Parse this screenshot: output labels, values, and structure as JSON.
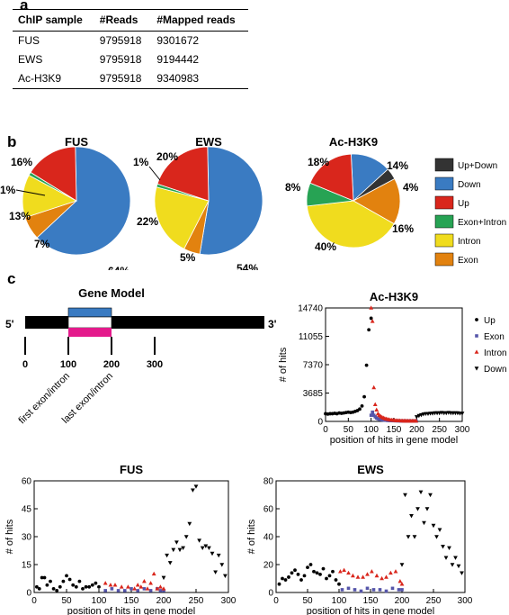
{
  "panels": {
    "a": "a",
    "b": "b",
    "c": "c"
  },
  "table": {
    "headers": [
      "ChIP sample",
      "#Reads",
      "#Mapped reads"
    ],
    "rows": [
      [
        "FUS",
        "9795918",
        "9301672"
      ],
      [
        "EWS",
        "9795918",
        "9194442"
      ],
      [
        "Ac-H3K9",
        "9795918",
        "9340983"
      ]
    ]
  },
  "pie_legend": [
    {
      "label": "Up+Down",
      "color": "#333333"
    },
    {
      "label": "Down",
      "color": "#3a7bc2"
    },
    {
      "label": "Up",
      "color": "#d9261c"
    },
    {
      "label": "Exon+Intron",
      "color": "#27a354"
    },
    {
      "label": "Intron",
      "color": "#f0dc1e"
    },
    {
      "label": "Exon",
      "color": "#e2820f"
    }
  ],
  "gene_model": {
    "title": "Gene Model",
    "five_prime": "5'",
    "three_prime": "3'",
    "ticks": [
      "0",
      "100",
      "200",
      "300"
    ],
    "first_label": "first exon/intron",
    "last_label": "last exon/intron"
  },
  "scatter_legend": [
    {
      "label": "Up",
      "marker": "circle",
      "color": "#000000"
    },
    {
      "label": "Exon",
      "marker": "square",
      "color": "#5555aa"
    },
    {
      "label": "Intron",
      "marker": "triangle-up",
      "color": "#d9261c"
    },
    {
      "label": "Down",
      "marker": "triangle-down",
      "color": "#000000"
    }
  ],
  "chart_data": [
    {
      "type": "pie",
      "title": "FUS",
      "slices": [
        {
          "category": "Down",
          "value": 64,
          "label": "64%"
        },
        {
          "category": "Exon",
          "value": 7,
          "label": "7%"
        },
        {
          "category": "Intron",
          "value": 13,
          "label": "13%"
        },
        {
          "category": "Exon+Intron",
          "value": 1,
          "label": "1%"
        },
        {
          "category": "Up",
          "value": 16,
          "label": "16%"
        }
      ]
    },
    {
      "type": "pie",
      "title": "EWS",
      "slices": [
        {
          "category": "Down",
          "value": 54,
          "label": "54%"
        },
        {
          "category": "Exon",
          "value": 5,
          "label": "5%"
        },
        {
          "category": "Intron",
          "value": 22,
          "label": "22%"
        },
        {
          "category": "Exon+Intron",
          "value": 1,
          "label": "1%"
        },
        {
          "category": "Up",
          "value": 20,
          "label": "20%"
        }
      ]
    },
    {
      "type": "pie",
      "title": "Ac-H3K9",
      "slices": [
        {
          "category": "Down",
          "value": 14,
          "label": "14%"
        },
        {
          "category": "Up+Down",
          "value": 4,
          "label": "4%"
        },
        {
          "category": "Exon",
          "value": 16,
          "label": "16%"
        },
        {
          "category": "Intron",
          "value": 40,
          "label": "40%"
        },
        {
          "category": "Exon+Intron",
          "value": 8,
          "label": "8%"
        },
        {
          "category": "Up",
          "value": 18,
          "label": "18%"
        }
      ]
    },
    {
      "type": "scatter",
      "title": "Ac-H3K9",
      "xlabel": "position of hits in gene model",
      "ylabel": "# of hits",
      "xlim": [
        0,
        300
      ],
      "ylim": [
        0,
        14740
      ],
      "xticks": [
        0,
        50,
        100,
        150,
        200,
        250,
        300
      ],
      "yticks": [
        0,
        3685,
        7370,
        11055,
        14740
      ],
      "series": [
        {
          "name": "Up",
          "x": [
            0,
            5,
            10,
            15,
            20,
            25,
            30,
            35,
            40,
            45,
            50,
            55,
            60,
            65,
            70,
            75,
            80,
            85,
            90,
            95,
            100
          ],
          "y": [
            1000,
            950,
            1000,
            1000,
            1050,
            1000,
            1100,
            1050,
            1100,
            1150,
            1200,
            1150,
            1200,
            1300,
            1400,
            1600,
            2000,
            3200,
            7300,
            11900,
            13400
          ]
        },
        {
          "name": "Exon",
          "x": [
            100,
            103,
            106,
            109,
            112,
            115,
            118,
            121,
            124,
            127,
            130,
            133,
            136,
            139,
            142,
            145,
            148,
            151,
            154,
            157,
            160,
            163,
            166,
            169,
            172,
            175,
            178,
            181,
            184,
            187,
            190,
            193,
            196,
            199
          ],
          "y": [
            800,
            1200,
            800,
            600,
            450,
            350,
            300,
            250,
            200,
            180,
            150,
            150,
            120,
            120,
            100,
            100,
            90,
            90,
            80,
            80,
            70,
            70,
            60,
            60,
            60,
            50,
            50,
            50,
            50,
            50,
            50,
            50,
            50,
            50
          ]
        },
        {
          "name": "Intron",
          "x": [
            100,
            103,
            106,
            109,
            112,
            115,
            118,
            121,
            124,
            127,
            130,
            133,
            136,
            139,
            142,
            145,
            148,
            151,
            154,
            157,
            160,
            163,
            166,
            169,
            172,
            175,
            178,
            181,
            184,
            187,
            190,
            193,
            196,
            199
          ],
          "y": [
            14740,
            13000,
            4400,
            2200,
            1500,
            1000,
            800,
            650,
            550,
            450,
            380,
            320,
            280,
            240,
            200,
            180,
            160,
            140,
            120,
            110,
            100,
            90,
            80,
            80,
            70,
            70,
            60,
            60,
            60,
            60,
            60,
            60,
            60,
            60
          ]
        },
        {
          "name": "Down",
          "x": [
            200,
            205,
            210,
            215,
            220,
            225,
            230,
            235,
            240,
            245,
            250,
            255,
            260,
            265,
            270,
            275,
            280,
            285,
            290,
            295,
            300
          ],
          "y": [
            600,
            750,
            850,
            950,
            1000,
            1000,
            1050,
            1050,
            1100,
            1100,
            1100,
            1150,
            1100,
            1100,
            1150,
            1100,
            1100,
            1100,
            1100,
            1050,
            1050
          ]
        }
      ]
    },
    {
      "type": "scatter",
      "title": "FUS",
      "xlabel": "position of hits in gene model",
      "ylabel": "# of hits",
      "xlim": [
        0,
        300
      ],
      "ylim": [
        0,
        60
      ],
      "xticks": [
        0,
        50,
        100,
        150,
        200,
        250,
        300
      ],
      "yticks": [
        0,
        15,
        30,
        45,
        60
      ],
      "series": [
        {
          "name": "Up",
          "x": [
            4,
            8,
            12,
            16,
            20,
            25,
            30,
            35,
            40,
            45,
            50,
            55,
            60,
            65,
            70,
            75,
            80,
            85,
            90,
            95,
            100
          ],
          "y": [
            3,
            2,
            8,
            8,
            4,
            6,
            2,
            1,
            3,
            6,
            9,
            7,
            4,
            3,
            6,
            2,
            3,
            3,
            4,
            5,
            3
          ]
        },
        {
          "name": "Exon",
          "x": [
            110,
            120,
            130,
            140,
            150,
            160,
            170,
            180,
            190,
            195,
            200
          ],
          "y": [
            1,
            2,
            1,
            1,
            2,
            1,
            2,
            1,
            2,
            1,
            1
          ]
        },
        {
          "name": "Intron",
          "x": [
            110,
            118,
            125,
            135,
            145,
            155,
            160,
            165,
            170,
            175,
            180,
            185,
            190,
            195,
            200
          ],
          "y": [
            5,
            4,
            4,
            3,
            3,
            2,
            4,
            3,
            6,
            2,
            5,
            10,
            2,
            3,
            2
          ]
        },
        {
          "name": "Down",
          "x": [
            200,
            205,
            210,
            215,
            220,
            225,
            230,
            235,
            240,
            245,
            250,
            255,
            260,
            265,
            270,
            275,
            280,
            285,
            290,
            295
          ],
          "y": [
            8,
            20,
            16,
            23,
            27,
            23,
            24,
            30,
            37,
            55,
            57,
            28,
            24,
            25,
            24,
            21,
            11,
            20,
            15,
            9
          ]
        }
      ]
    },
    {
      "type": "scatter",
      "title": "EWS",
      "xlabel": "position of hits in gene model",
      "ylabel": "# of hits",
      "xlim": [
        0,
        300
      ],
      "ylim": [
        0,
        80
      ],
      "xticks": [
        0,
        50,
        100,
        150,
        200,
        250,
        300
      ],
      "yticks": [
        0,
        20,
        40,
        60,
        80
      ],
      "series": [
        {
          "name": "Up",
          "x": [
            5,
            10,
            15,
            20,
            25,
            30,
            35,
            40,
            45,
            50,
            55,
            60,
            65,
            70,
            75,
            80,
            85,
            90,
            95,
            100
          ],
          "y": [
            6,
            10,
            9,
            11,
            14,
            16,
            13,
            9,
            12,
            18,
            20,
            15,
            14,
            13,
            17,
            10,
            12,
            15,
            9,
            6
          ]
        },
        {
          "name": "Exon",
          "x": [
            105,
            115,
            125,
            135,
            145,
            155,
            165,
            175,
            185,
            195,
            200
          ],
          "y": [
            2,
            3,
            2,
            1,
            3,
            2,
            2,
            1,
            3,
            2,
            2
          ]
        },
        {
          "name": "Intron",
          "x": [
            102,
            108,
            115,
            122,
            130,
            138,
            145,
            152,
            160,
            168,
            175,
            182,
            190,
            197,
            200
          ],
          "y": [
            15,
            16,
            14,
            12,
            11,
            11,
            13,
            15,
            12,
            10,
            11,
            14,
            15,
            8,
            6
          ]
        },
        {
          "name": "Down",
          "x": [
            200,
            205,
            210,
            215,
            220,
            225,
            230,
            235,
            240,
            245,
            250,
            255,
            260,
            265,
            270,
            275,
            280,
            285,
            290,
            295
          ],
          "y": [
            20,
            70,
            40,
            55,
            40,
            60,
            72,
            50,
            60,
            70,
            48,
            40,
            45,
            33,
            25,
            32,
            20,
            25,
            19,
            14
          ]
        }
      ]
    }
  ]
}
